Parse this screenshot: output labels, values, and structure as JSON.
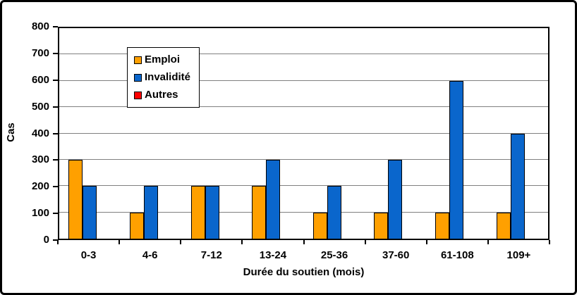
{
  "chart_data": {
    "type": "bar",
    "title": "",
    "xlabel": "Durée du soutien (mois)",
    "ylabel": "Cas",
    "categories": [
      "0-3",
      "4-6",
      "7-12",
      "13-24",
      "25-36",
      "37-60",
      "61-108",
      "109+"
    ],
    "series": [
      {
        "name": "Emploi",
        "color": "#FFA000",
        "values": [
          300,
          100,
          200,
          200,
          100,
          100,
          100,
          100
        ]
      },
      {
        "name": "Invalidité",
        "color": "#0A66CC",
        "values": [
          200,
          200,
          200,
          300,
          200,
          300,
          600,
          400
        ]
      },
      {
        "name": "Autres",
        "color": "#FF0000",
        "values": [
          0,
          0,
          0,
          0,
          0,
          0,
          0,
          0
        ]
      }
    ],
    "ylim": [
      0,
      800
    ],
    "ytick_step": 100,
    "grid": true,
    "gridline_color": "#808080",
    "axis_color": "#000000",
    "legend_position": "inside-top-left"
  }
}
